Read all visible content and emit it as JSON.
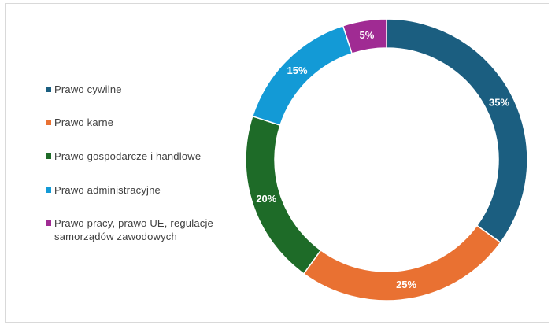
{
  "chart_data": {
    "type": "pie",
    "variant": "donut",
    "title": "",
    "legend_position": "left",
    "categories": [
      "Prawo cywilne",
      "Prawo karne",
      "Prawo gospodarcze i handlowe",
      "Prawo administracyjne",
      "Prawo pracy, prawo UE, regulacje samorządów zawodowych"
    ],
    "values": [
      35,
      25,
      20,
      15,
      5
    ],
    "labels": [
      "35%",
      "25%",
      "20%",
      "15%",
      "5%"
    ],
    "colors": [
      "#1b5e80",
      "#e97132",
      "#1e6b28",
      "#139ad6",
      "#a02b93"
    ]
  }
}
